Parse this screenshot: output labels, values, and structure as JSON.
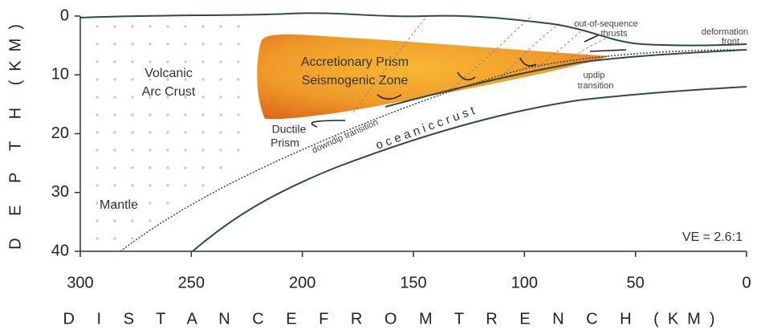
{
  "diagram": {
    "x_axis": {
      "title": "D I S T A N C E   F R O M   T R E N C H   (KM)",
      "lim": [
        300,
        0
      ],
      "ticks": [
        300,
        250,
        200,
        150,
        100,
        50,
        0
      ]
    },
    "y_axis": {
      "title": "D E P T H   (KM)",
      "lim": [
        0,
        40
      ],
      "ticks": [
        0,
        10,
        20,
        30,
        40
      ]
    },
    "labels": {
      "volcanic": "Volcanic",
      "arc_crust": "Arc Crust",
      "accretionary": "Accretionary Prism",
      "seismogenic": "Seismogenic Zone",
      "ductile": "Ductile",
      "prism": "Prism",
      "downdip": "downdip transition",
      "oceanic_crust": "o c e a n i c   c r u s t",
      "out_of_sequence": "out-of-sequence",
      "thrusts": "thrusts",
      "deformation": "deformation",
      "front": "front",
      "updip": "updip",
      "transition": "transition",
      "mantle": "Mantle",
      "ve": "VE = 2.6:1"
    }
  }
}
